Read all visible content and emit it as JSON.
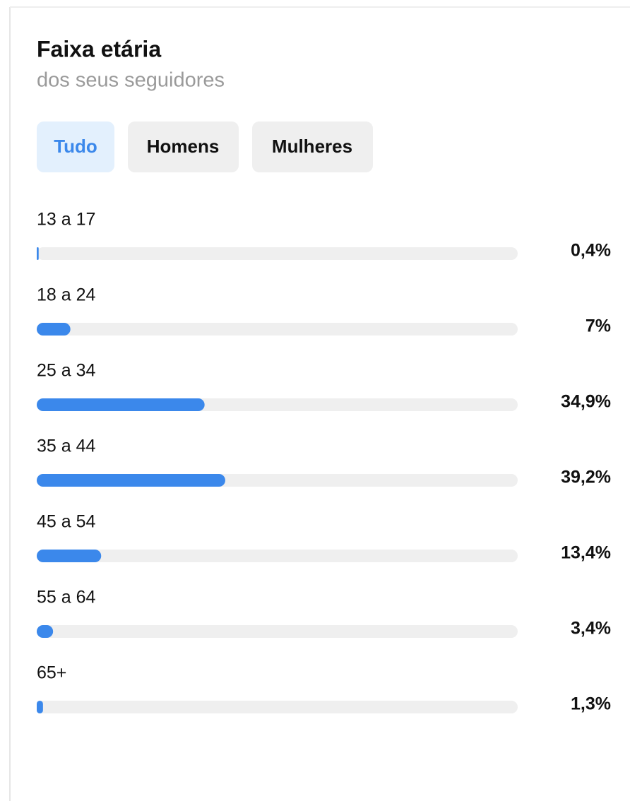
{
  "header": {
    "title": "Faixa etária",
    "subtitle": "dos seus seguidores"
  },
  "tabs": [
    "Tudo",
    "Homens",
    "Mulheres"
  ],
  "chart_data": {
    "type": "bar",
    "orientation": "horizontal",
    "categories": [
      "13 a 17",
      "18 a 24",
      "25 a 34",
      "35 a 44",
      "45 a 54",
      "55 a 64",
      "65+"
    ],
    "values": [
      0.4,
      7,
      34.9,
      39.2,
      13.4,
      3.4,
      1.3
    ],
    "value_labels": [
      "0,4%",
      "7%",
      "34,9%",
      "39,2%",
      "13,4%",
      "3,4%",
      "1,3%"
    ],
    "xlim": [
      0,
      100
    ],
    "color": "#3b88eb"
  }
}
